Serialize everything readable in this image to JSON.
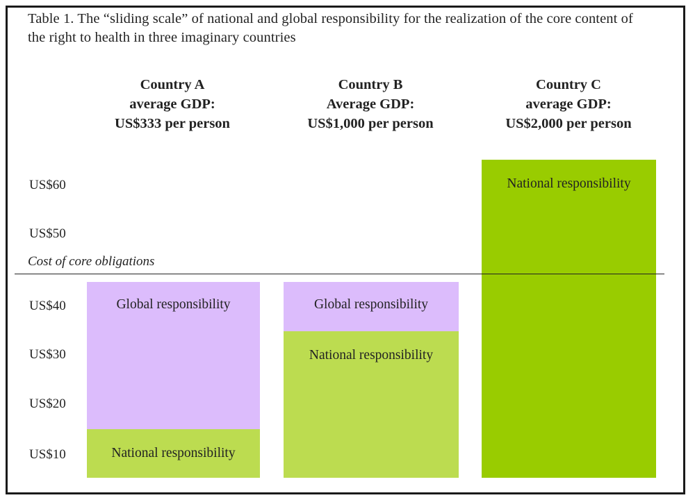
{
  "caption": "Table 1. The “sliding scale” of national and global responsibility for the realization of the core content of the right to health in three imaginary countries",
  "chart_data": {
    "type": "bar",
    "stacked": true,
    "categories": [
      {
        "name": "Country A",
        "line2": "average GDP:",
        "line3": "US$333 per person"
      },
      {
        "name": "Country B",
        "line2": "Average GDP:",
        "line3": "US$1,000 per person"
      },
      {
        "name": "Country C",
        "line2": "average GDP:",
        "line3": "US$2,000 per person"
      }
    ],
    "series": [
      {
        "name": "National responsibility",
        "values": [
          10,
          30,
          65
        ],
        "label": "National responsibility"
      },
      {
        "name": "Global responsibility",
        "values": [
          30,
          10,
          0
        ],
        "label": "Global responsibility"
      }
    ],
    "ylim": [
      0,
      65
    ],
    "yticks": [
      {
        "value": 10,
        "label": "US$10"
      },
      {
        "value": 20,
        "label": "US$20"
      },
      {
        "value": 30,
        "label": "US$30"
      },
      {
        "value": 40,
        "label": "US$40"
      },
      {
        "value": 50,
        "label": "US$50"
      },
      {
        "value": 60,
        "label": "US$60"
      }
    ],
    "threshold": {
      "value": 40,
      "label": "Cost of  core obligations"
    }
  },
  "colors": {
    "national_light": "#bcdc50",
    "national_dark": "#99cc00",
    "global": "#dcbcfc",
    "line": "#222222"
  }
}
